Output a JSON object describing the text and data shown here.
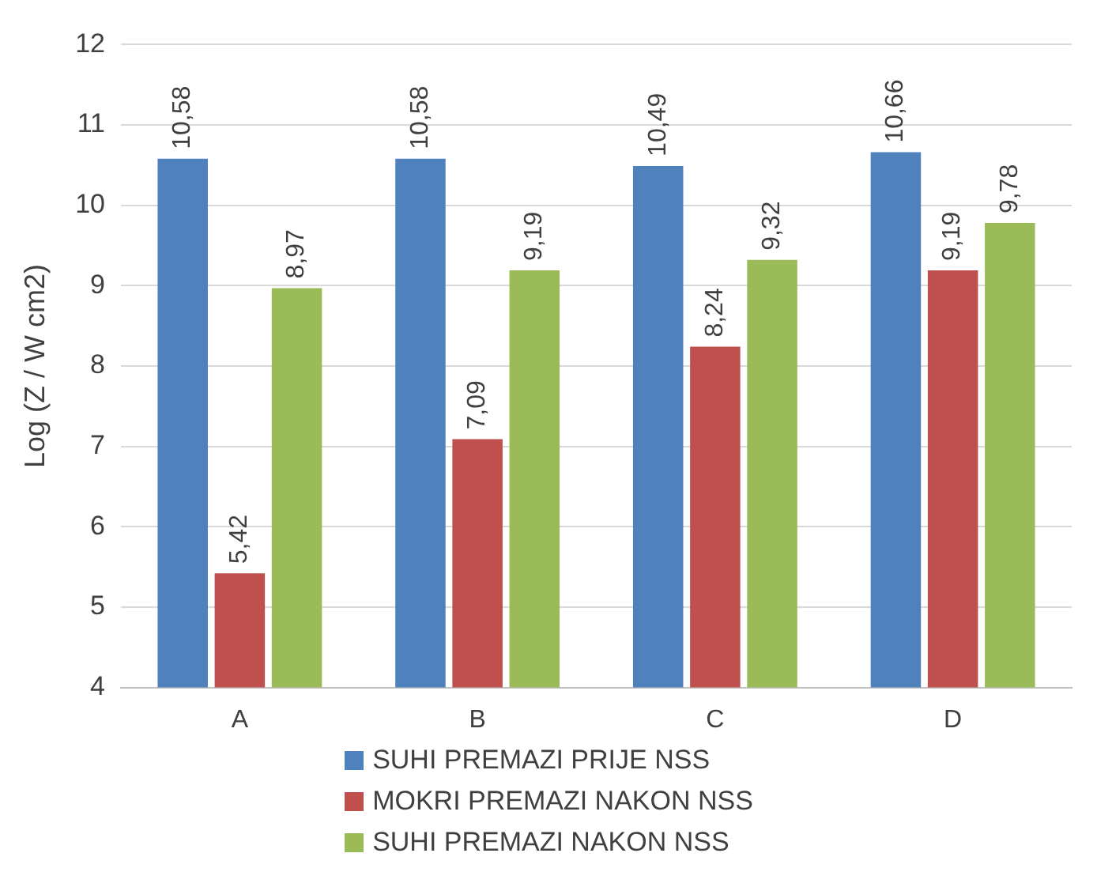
{
  "chart_data": {
    "type": "bar",
    "ylabel": "Log (Z / W cm2)",
    "categories": [
      "A",
      "B",
      "C",
      "D"
    ],
    "series": [
      {
        "name": "SUHI PREMAZI PRIJE NSS",
        "color": "#4f81bd",
        "values": [
          10.58,
          10.58,
          10.49,
          10.66
        ],
        "value_labels": [
          "10,58",
          "10,58",
          "10,49",
          "10,66"
        ]
      },
      {
        "name": "MOKRI PREMAZI NAKON NSS",
        "color": "#c0504d",
        "values": [
          5.42,
          7.09,
          8.24,
          9.19
        ],
        "value_labels": [
          "5,42",
          "7,09",
          "8,24",
          "9,19"
        ]
      },
      {
        "name": "SUHI PREMAZI NAKON NSS",
        "color": "#9bbb59",
        "values": [
          8.97,
          9.19,
          9.32,
          9.78
        ],
        "value_labels": [
          "8,97",
          "9,19",
          "9,32",
          "9,78"
        ]
      }
    ],
    "ylim": [
      4,
      12
    ],
    "yticks": [
      4,
      5,
      6,
      7,
      8,
      9,
      10,
      11,
      12
    ],
    "grid": "y",
    "legend": "bottom"
  }
}
